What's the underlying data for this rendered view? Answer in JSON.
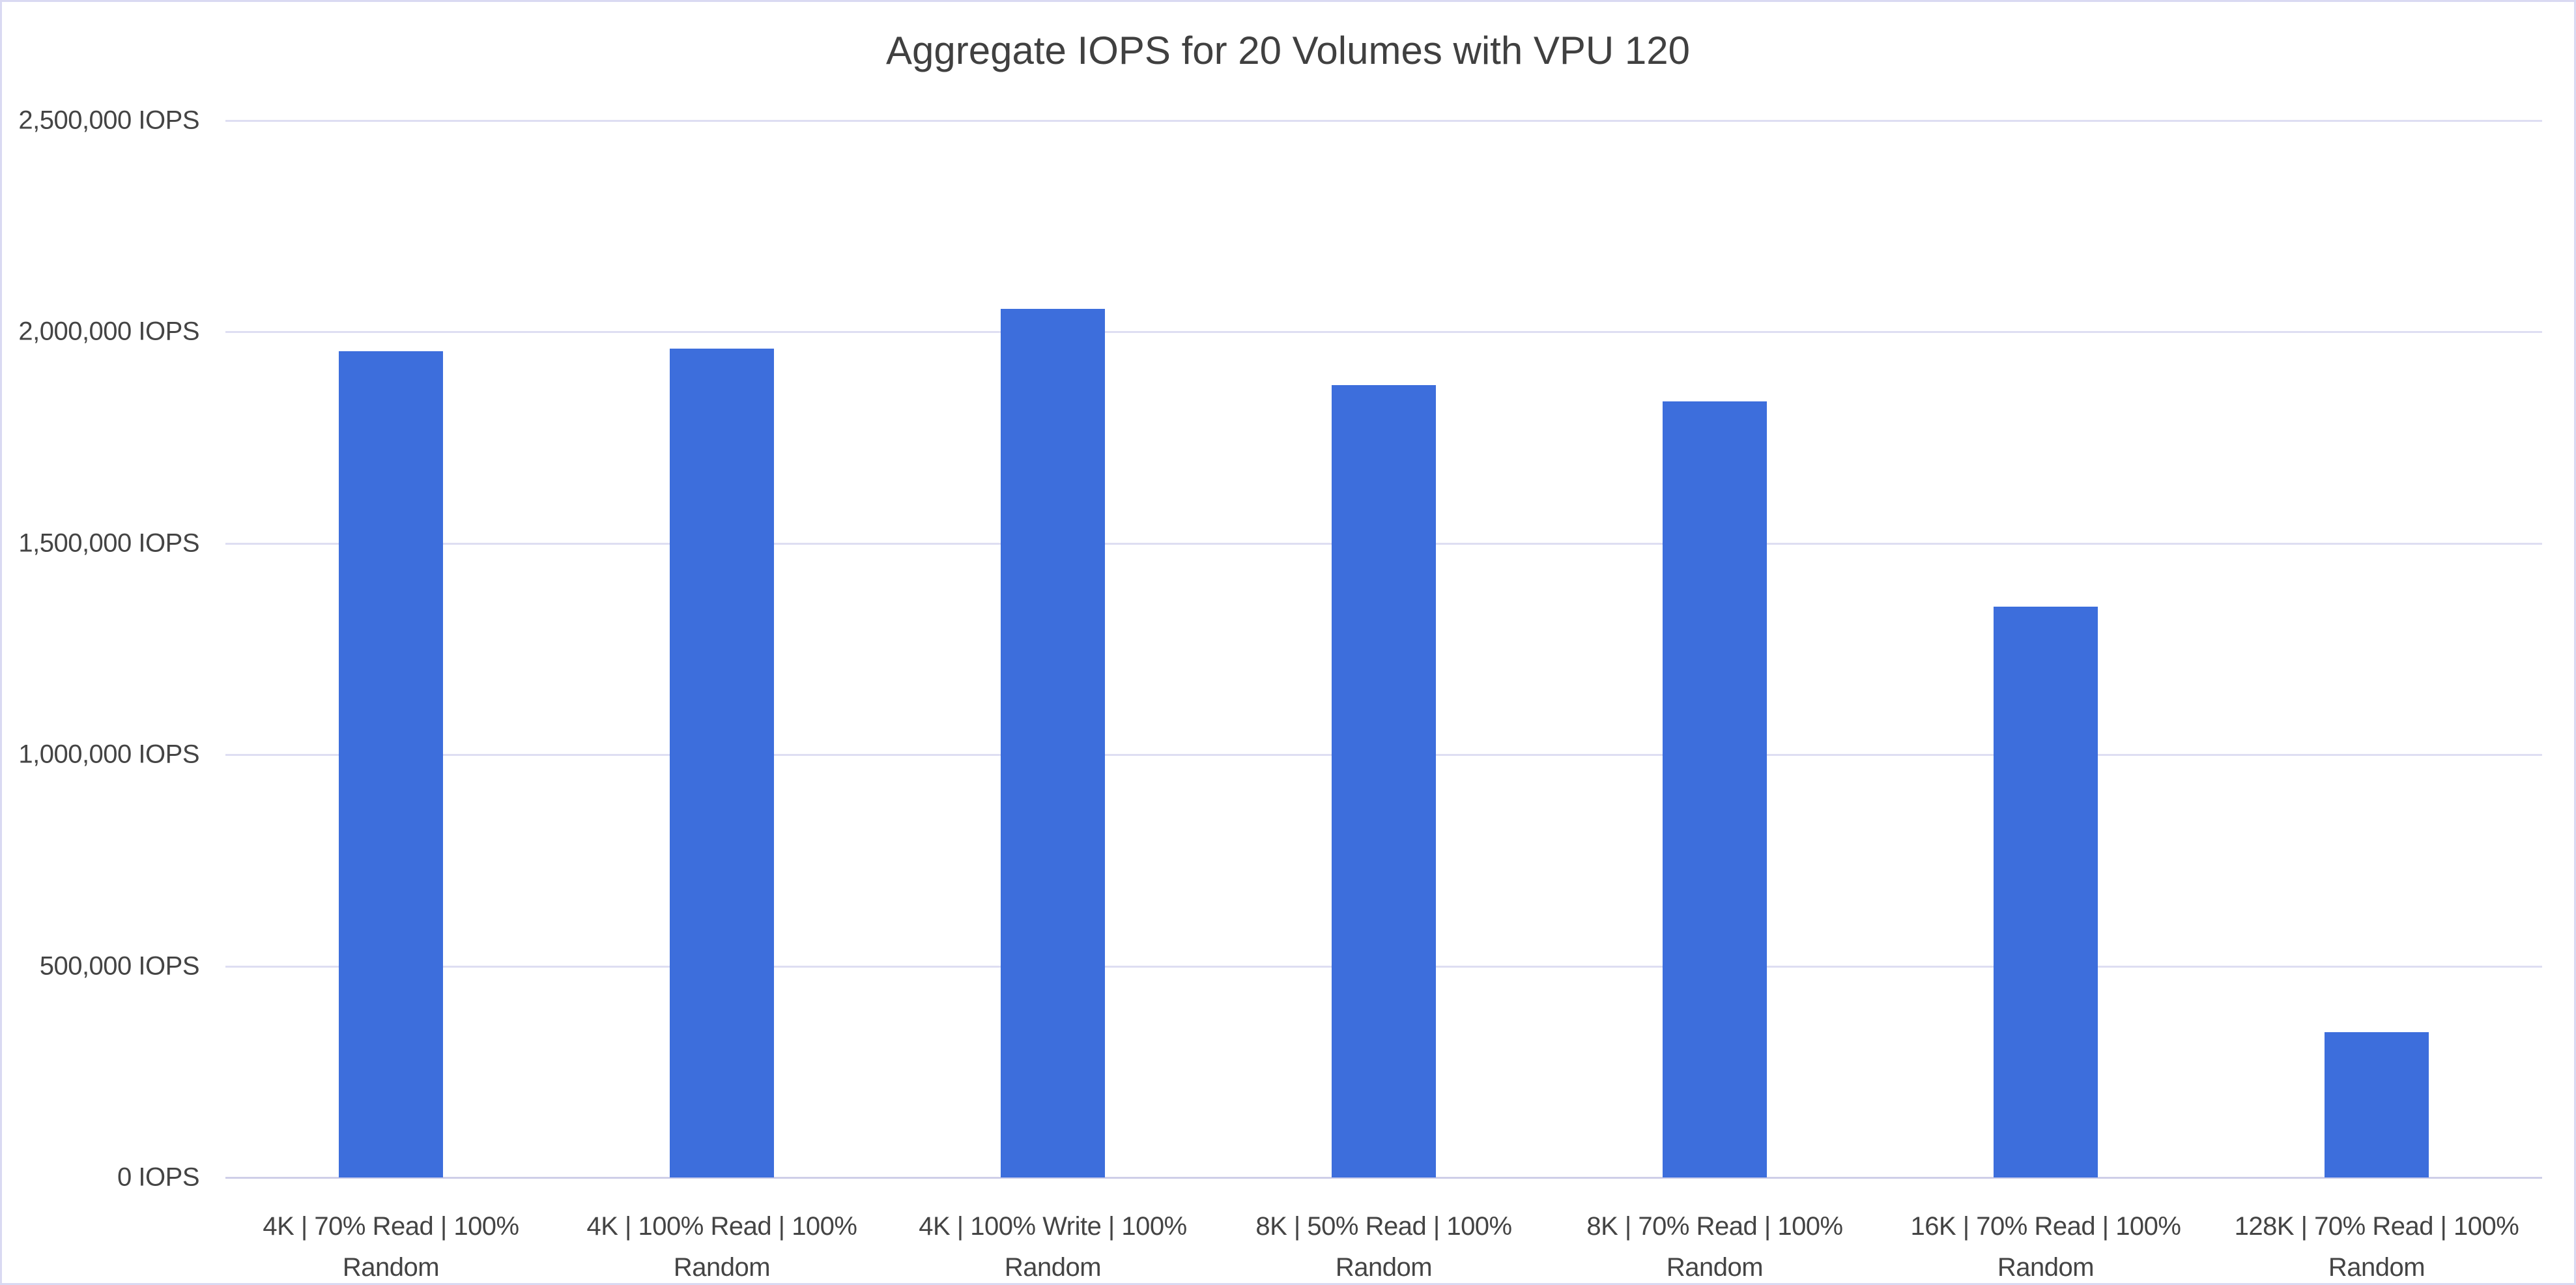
{
  "window": {
    "background_color": "#ffffff",
    "border_color": "#d9d9f2"
  },
  "chart_data": {
    "type": "bar",
    "title": "Aggregate IOPS for 20 Volumes with VPU 120",
    "categories": [
      "4K | 70% Read | 100% Random",
      "4K | 100% Read | 100% Random",
      "4K | 100% Write | 100% Random",
      "8K | 50% Read | 100% Random",
      "8K | 70% Read | 100% Random",
      "16K | 70% Read | 100% Random",
      "128K | 70% Read | 100% Random"
    ],
    "values": [
      1955000,
      1960000,
      2055000,
      1875000,
      1835000,
      1350000,
      343000
    ],
    "xlabel": "",
    "ylabel": "",
    "ylim": [
      0,
      2500000
    ],
    "y_ticks": [
      {
        "label": "0 IOPS",
        "value": 0
      },
      {
        "label": "500,000 IOPS",
        "value": 500000
      },
      {
        "label": "1,000,000 IOPS",
        "value": 1000000
      },
      {
        "label": "1,500,000 IOPS",
        "value": 1500000
      },
      {
        "label": "2,000,000 IOPS",
        "value": 2000000
      },
      {
        "label": "2,500,000 IOPS",
        "value": 2500000
      }
    ],
    "grid": true,
    "legend_position": "none",
    "bar_color": "#3d6edc",
    "gridline_color": "#dedef2",
    "title_color": "#404040",
    "axis_text_color": "#444444"
  }
}
